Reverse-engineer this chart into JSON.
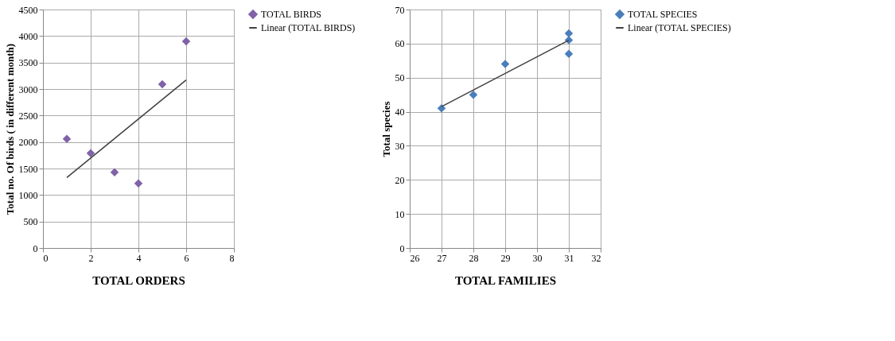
{
  "chart_data": [
    {
      "type": "scatter",
      "xlabel": "TOTAL ORDERS",
      "ylabel": "Total no. Of birds ( in different month)",
      "xlim": [
        0,
        8
      ],
      "xticks": [
        0,
        2,
        4,
        6,
        8
      ],
      "ylim": [
        0,
        4500
      ],
      "yticks": [
        0,
        500,
        1000,
        1500,
        2000,
        2500,
        3000,
        3500,
        4000,
        4500
      ],
      "grid": true,
      "legend": "right",
      "x": [
        1,
        2,
        3,
        4,
        5,
        6
      ],
      "series": [
        {
          "name": "TOTAL BIRDS",
          "color": "#7f62a8",
          "marker": "diamond",
          "values": [
            2060,
            1790,
            1430,
            1220,
            3090,
            3900
          ]
        },
        {
          "name": "Linear (TOTAL BIRDS)",
          "type": "line",
          "marker": "none",
          "color": "#404040",
          "x": [
            1,
            6
          ],
          "values": [
            1330,
            3170
          ]
        }
      ]
    },
    {
      "type": "scatter",
      "xlabel": "TOTAL FAMILIES",
      "ylabel": "Total species",
      "xlim": [
        26,
        32
      ],
      "xticks": [
        26,
        27,
        28,
        29,
        30,
        31,
        32
      ],
      "ylim": [
        0,
        70
      ],
      "yticks": [
        0,
        10,
        20,
        30,
        40,
        50,
        60,
        70
      ],
      "grid": true,
      "legend": "right",
      "x": [
        27,
        28,
        29,
        31,
        31,
        31
      ],
      "series": [
        {
          "name": "TOTAL SPECIES",
          "color": "#4a7ebb",
          "marker": "diamond",
          "values": [
            41,
            45,
            54,
            63,
            61,
            57
          ]
        },
        {
          "name": "Linear (TOTAL SPECIES)",
          "type": "line",
          "marker": "none",
          "color": "#404040",
          "x": [
            27,
            31
          ],
          "values": [
            41.5,
            61
          ]
        }
      ]
    }
  ]
}
